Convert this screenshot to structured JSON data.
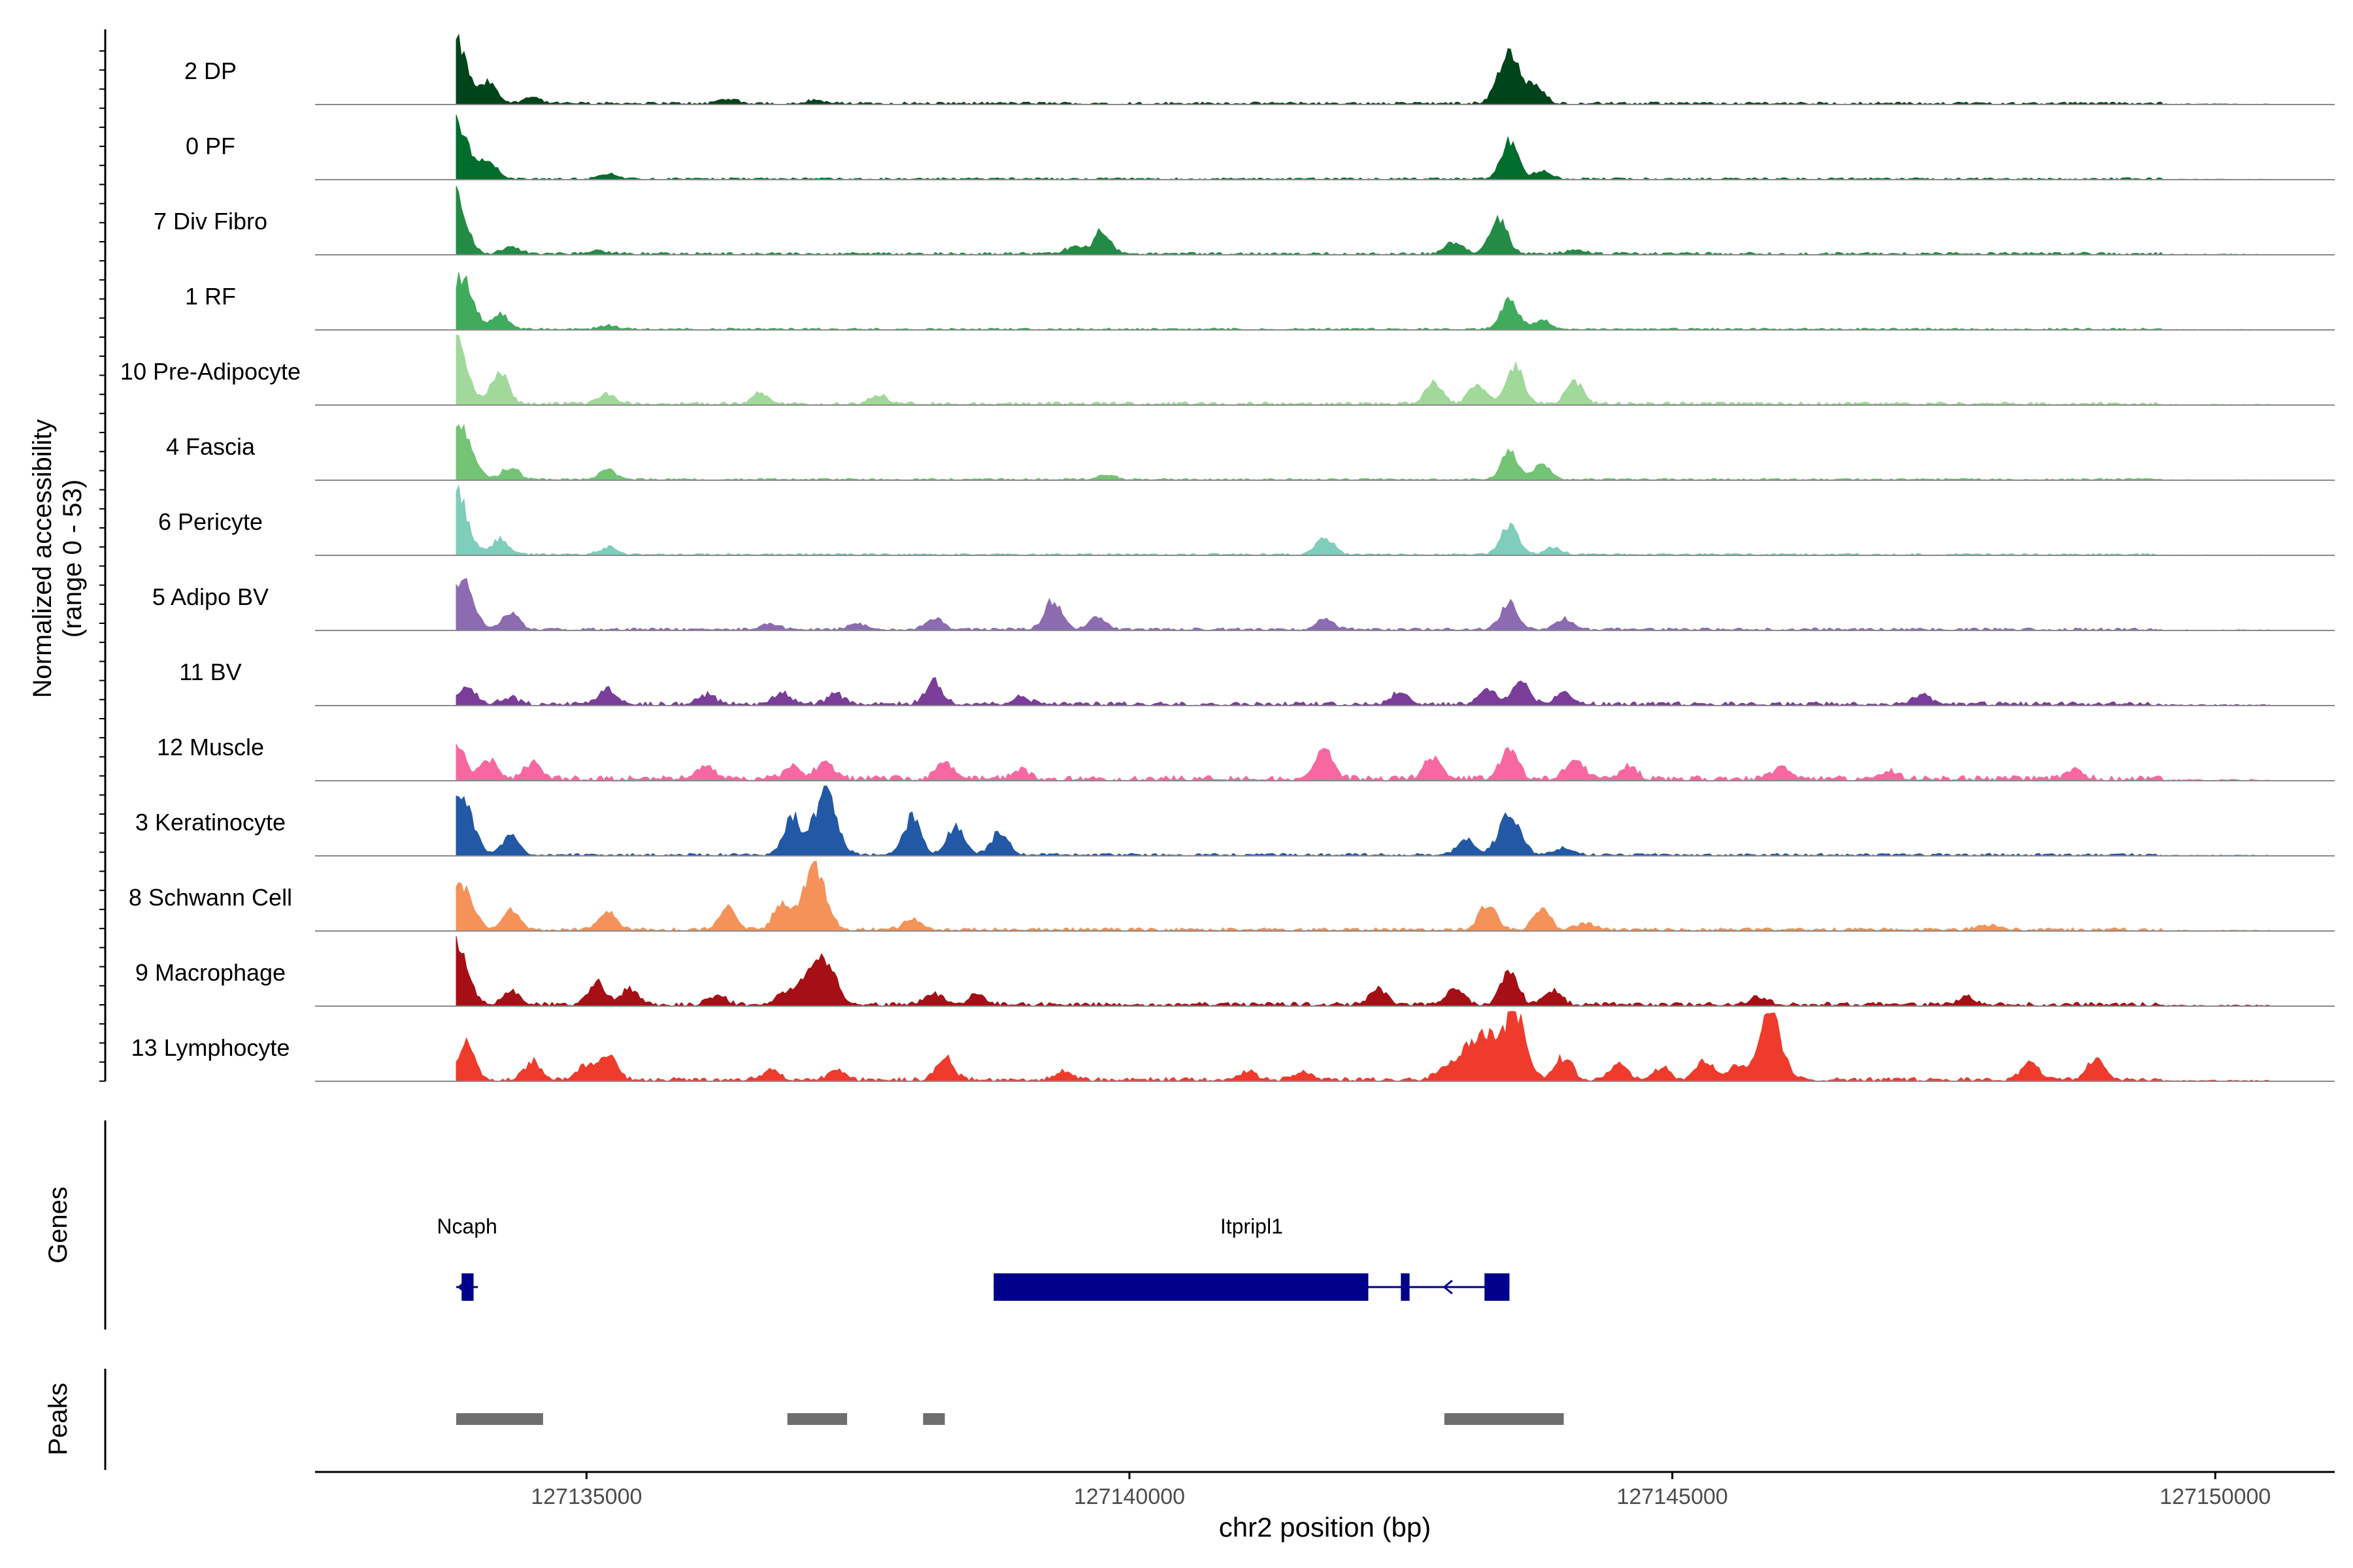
{
  "chart_data": {
    "type": "area",
    "xlabel": "chr2 position (bp)",
    "ylabel": "Normalized accessibility",
    "ylabel_range": "(range 0 - 53)",
    "xlim": [
      127132500,
      127151100
    ],
    "x_ticks": [
      127135000,
      127140000,
      127145000,
      127150000
    ],
    "x_tick_labels": [
      "127135000",
      "127140000",
      "127145000",
      "127150000"
    ],
    "y_range": [
      0,
      53
    ],
    "tracks": [
      {
        "name": "2 DP",
        "color": "#00441b",
        "peaks": [
          [
            127133800,
            49
          ],
          [
            127134100,
            16
          ],
          [
            127134500,
            5
          ],
          [
            127136300,
            4
          ],
          [
            127137100,
            3
          ],
          [
            127143500,
            43
          ],
          [
            127143750,
            12
          ]
        ],
        "noise": 2
      },
      {
        "name": "0 PF",
        "color": "#006d2c",
        "peaks": [
          [
            127133800,
            47
          ],
          [
            127134100,
            15
          ],
          [
            127135200,
            4
          ],
          [
            127143500,
            30
          ],
          [
            127143800,
            6
          ]
        ],
        "noise": 1.5
      },
      {
        "name": "7 Div Fibro",
        "color": "#238b45",
        "peaks": [
          [
            127133780,
            53
          ],
          [
            127134300,
            6
          ],
          [
            127135100,
            3
          ],
          [
            127139750,
            18
          ],
          [
            127139500,
            6
          ],
          [
            127143400,
            30
          ],
          [
            127143000,
            10
          ],
          [
            127144100,
            4
          ]
        ],
        "noise": 2
      },
      {
        "name": "1 RF",
        "color": "#41ab5d",
        "peaks": [
          [
            127133850,
            44
          ],
          [
            127134200,
            12
          ],
          [
            127135200,
            3
          ],
          [
            127143500,
            24
          ],
          [
            127143800,
            7
          ]
        ],
        "noise": 1.5
      },
      {
        "name": "10 Pre-Adipocyte",
        "color": "#a1d99b",
        "peaks": [
          [
            127133800,
            53
          ],
          [
            127134200,
            25
          ],
          [
            127135200,
            8
          ],
          [
            127136600,
            9
          ],
          [
            127137700,
            7
          ],
          [
            127142800,
            18
          ],
          [
            127143200,
            15
          ],
          [
            127143550,
            30
          ],
          [
            127144100,
            18
          ]
        ],
        "noise": 2.5
      },
      {
        "name": "4 Fascia",
        "color": "#74c476",
        "peaks": [
          [
            127133850,
            44
          ],
          [
            127134300,
            10
          ],
          [
            127135200,
            8
          ],
          [
            127139800,
            4
          ],
          [
            127143500,
            22
          ],
          [
            127143800,
            12
          ]
        ],
        "noise": 1.5
      },
      {
        "name": "6 Pericyte",
        "color": "#7fcdbb",
        "peaks": [
          [
            127133800,
            53
          ],
          [
            127134200,
            12
          ],
          [
            127135200,
            6
          ],
          [
            127141800,
            14
          ],
          [
            127143500,
            25
          ],
          [
            127143900,
            6
          ]
        ],
        "noise": 1.5
      },
      {
        "name": "5 Adipo BV",
        "color": "#8c6bb1",
        "peaks": [
          [
            127133850,
            42
          ],
          [
            127134300,
            14
          ],
          [
            127136700,
            5
          ],
          [
            127137500,
            5
          ],
          [
            127138200,
            9
          ],
          [
            127139300,
            24
          ],
          [
            127139700,
            10
          ],
          [
            127141800,
            9
          ],
          [
            127143500,
            22
          ],
          [
            127144000,
            8
          ]
        ],
        "noise": 2
      },
      {
        "name": "11 BV",
        "color": "#7a3d9a",
        "peaks": [
          [
            127133900,
            14
          ],
          [
            127134300,
            5
          ],
          [
            127135200,
            12
          ],
          [
            127136100,
            8
          ],
          [
            127136800,
            10
          ],
          [
            127137300,
            8
          ],
          [
            127138200,
            18
          ],
          [
            127139000,
            6
          ],
          [
            127142500,
            10
          ],
          [
            127143300,
            12
          ],
          [
            127143600,
            18
          ],
          [
            127144000,
            8
          ],
          [
            127147300,
            8
          ]
        ],
        "noise": 3
      },
      {
        "name": "12 Muscle",
        "color": "#f768a1",
        "peaks": [
          [
            127133800,
            30
          ],
          [
            127134100,
            16
          ],
          [
            127134500,
            14
          ],
          [
            127136100,
            10
          ],
          [
            127136900,
            10
          ],
          [
            127137200,
            14
          ],
          [
            127138300,
            14
          ],
          [
            127139000,
            8
          ],
          [
            127141800,
            24
          ],
          [
            127142800,
            18
          ],
          [
            127143500,
            24
          ],
          [
            127144100,
            16
          ],
          [
            127144600,
            9
          ],
          [
            127146000,
            8
          ],
          [
            127147000,
            6
          ],
          [
            127148700,
            8
          ]
        ],
        "noise": 4
      },
      {
        "name": "3 Keratinocyte",
        "color": "#2258a5",
        "peaks": [
          [
            127133850,
            48
          ],
          [
            127134300,
            15
          ],
          [
            127137200,
            53
          ],
          [
            127136900,
            30
          ],
          [
            127138000,
            30
          ],
          [
            127138400,
            22
          ],
          [
            127138800,
            18
          ],
          [
            127143500,
            33
          ],
          [
            127143100,
            12
          ],
          [
            127144000,
            6
          ]
        ],
        "noise": 2
      },
      {
        "name": "8 Schwann Cell",
        "color": "#f4925a",
        "peaks": [
          [
            127133850,
            38
          ],
          [
            127134300,
            16
          ],
          [
            127135200,
            14
          ],
          [
            127136300,
            18
          ],
          [
            127137100,
            53
          ],
          [
            127136800,
            20
          ],
          [
            127138000,
            8
          ],
          [
            127143300,
            20
          ],
          [
            127143800,
            16
          ],
          [
            127144200,
            6
          ],
          [
            127147900,
            4
          ]
        ],
        "noise": 2.5
      },
      {
        "name": "9 Macrophage",
        "color": "#a50f15",
        "peaks": [
          [
            127133800,
            53
          ],
          [
            127134300,
            10
          ],
          [
            127135100,
            18
          ],
          [
            127135400,
            12
          ],
          [
            127136200,
            8
          ],
          [
            127136800,
            8
          ],
          [
            127137200,
            36
          ],
          [
            127137000,
            20
          ],
          [
            127138200,
            10
          ],
          [
            127138600,
            8
          ],
          [
            127142300,
            12
          ],
          [
            127143000,
            14
          ],
          [
            127143500,
            26
          ],
          [
            127143900,
            12
          ],
          [
            127145800,
            6
          ],
          [
            127147700,
            6
          ]
        ],
        "noise": 3
      },
      {
        "name": "13 Lymphocyte",
        "color": "#ef3b2c",
        "peaks": [
          [
            127133900,
            28
          ],
          [
            127134500,
            14
          ],
          [
            127135200,
            20
          ],
          [
            127135000,
            12
          ],
          [
            127136700,
            8
          ],
          [
            127137300,
            7
          ],
          [
            127138300,
            18
          ],
          [
            127139400,
            6
          ],
          [
            127141100,
            6
          ],
          [
            127141600,
            6
          ],
          [
            127142900,
            12
          ],
          [
            127143300,
            36
          ],
          [
            127143550,
            53
          ],
          [
            127143100,
            24
          ],
          [
            127144000,
            18
          ],
          [
            127144500,
            14
          ],
          [
            127144900,
            10
          ],
          [
            127145300,
            16
          ],
          [
            127145600,
            12
          ],
          [
            127145900,
            53
          ],
          [
            127148300,
            14
          ],
          [
            127148900,
            16
          ]
        ],
        "noise": 3
      }
    ],
    "genes": [
      {
        "name": "Ncaph",
        "start": 127133800,
        "end": 127134000,
        "strand": "-",
        "exons": [
          [
            127133850,
            127133960
          ]
        ]
      },
      {
        "name": "Itpripl1",
        "start": 127138750,
        "end": 127143500,
        "strand": "-",
        "exons": [
          [
            127138750,
            127142200
          ],
          [
            127142500,
            127142580
          ],
          [
            127143270,
            127143500
          ]
        ]
      }
    ],
    "peaks_regions": [
      [
        127133800,
        127134600
      ],
      [
        127136850,
        127137400
      ],
      [
        127138100,
        127138300
      ],
      [
        127142900,
        127144000
      ]
    ]
  },
  "labels": {
    "genes_label": "Genes",
    "peaks_label": "Peaks"
  },
  "colors": {
    "gene": "#00008b",
    "peak_bar": "#6e6e6e",
    "baseline": "#8a8a8a",
    "axis": "#000000"
  }
}
